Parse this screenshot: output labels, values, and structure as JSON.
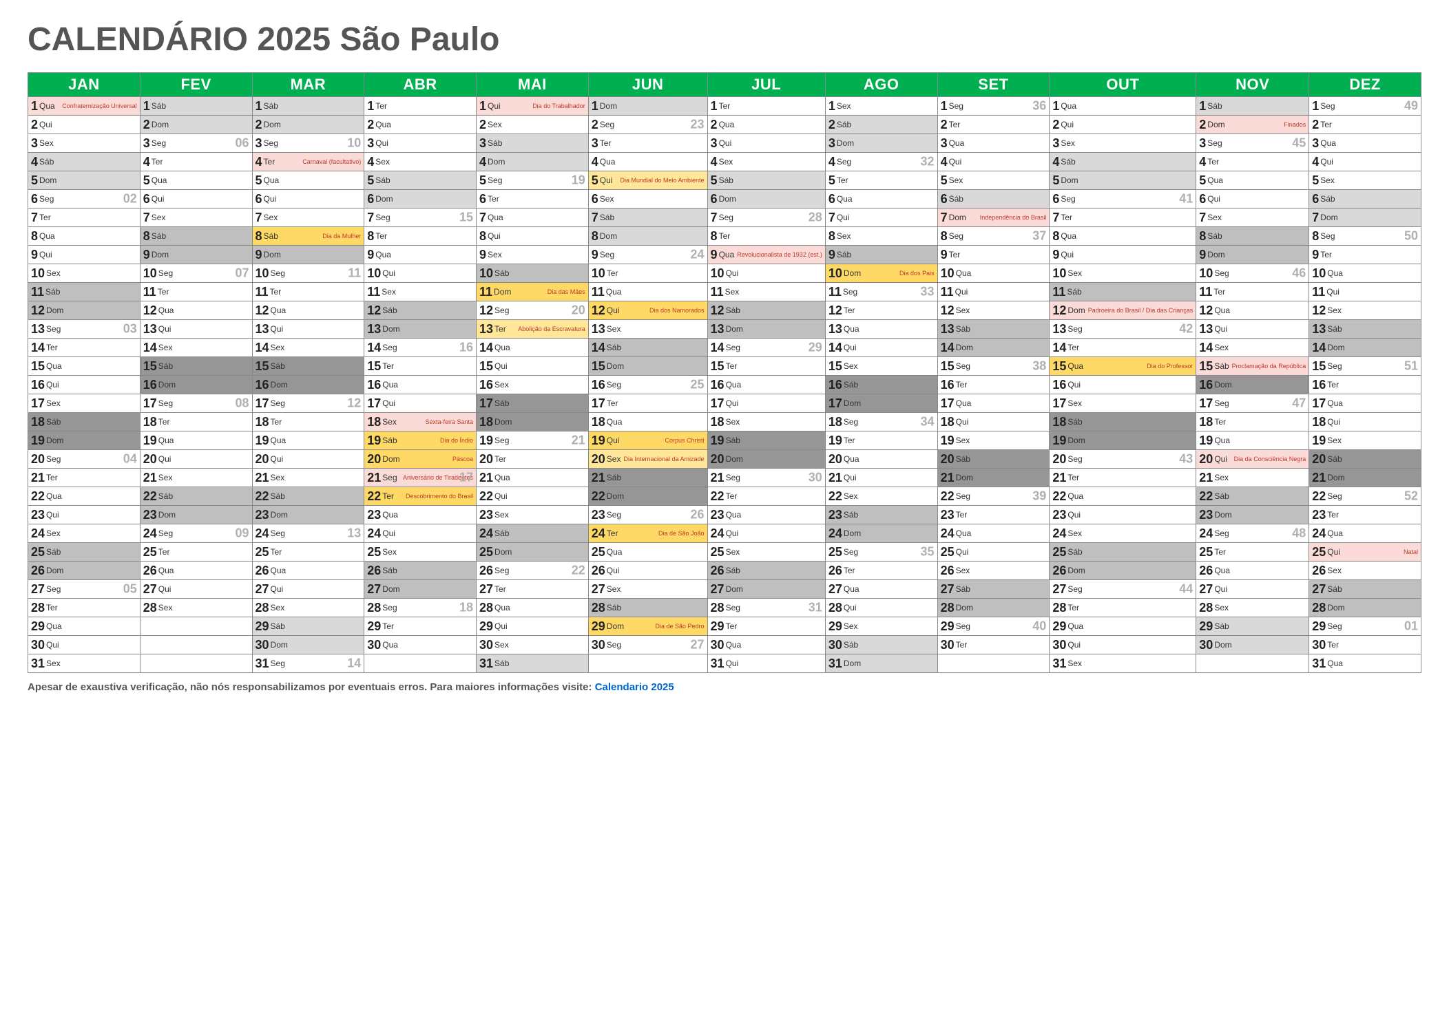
{
  "title": "CALENDÁRIO 2025 São Paulo",
  "footer_text": "Apesar de exaustiva verificação, não nós responsabilizamos por eventuais erros. Para maiores informações visite: ",
  "footer_link": "Calendario 2025",
  "colors": {
    "header_bg": "#00b050",
    "header_fg": "#ffffff",
    "weeknum": "#b0b0b0",
    "note": "#c0392b",
    "bg_white": "#ffffff",
    "bg_light": "#d9d9d9",
    "bg_med": "#bfbfbf",
    "bg_dark": "#969696",
    "bg_pink": "#fadbd8",
    "bg_yellow": "#ffd966",
    "bg_yellow2": "#ffe699"
  },
  "months": [
    "JAN",
    "FEV",
    "MAR",
    "ABR",
    "MAI",
    "JUN",
    "JUL",
    "AGO",
    "SET",
    "OUT",
    "NOV",
    "DEZ"
  ],
  "days_in_month": [
    31,
    28,
    31,
    30,
    31,
    30,
    31,
    31,
    30,
    31,
    30,
    31
  ],
  "start_dow": [
    3,
    6,
    6,
    2,
    4,
    0,
    2,
    5,
    1,
    3,
    6,
    1
  ],
  "dow_names": [
    "Dom",
    "Seg",
    "Ter",
    "Qua",
    "Qui",
    "Sex",
    "Sáb"
  ],
  "week_numbers": {
    "0": {
      "6": "02",
      "13": "03",
      "20": "04",
      "27": "05"
    },
    "1": {
      "3": "06",
      "10": "07",
      "17": "08",
      "24": "09"
    },
    "2": {
      "3": "10",
      "10": "11",
      "17": "12",
      "24": "13",
      "31": "14"
    },
    "3": {
      "7": "15",
      "14": "16",
      "21": "17",
      "28": "18"
    },
    "4": {
      "5": "19",
      "12": "20",
      "19": "21",
      "26": "22"
    },
    "5": {
      "2": "23",
      "9": "24",
      "16": "25",
      "23": "26",
      "30": "27"
    },
    "6": {
      "7": "28",
      "14": "29",
      "21": "30",
      "28": "31"
    },
    "7": {
      "4": "32",
      "11": "33",
      "18": "34",
      "25": "35"
    },
    "8": {
      "1": "36",
      "8": "37",
      "15": "38",
      "22": "39",
      "29": "40"
    },
    "9": {
      "6": "41",
      "13": "42",
      "20": "43",
      "27": "44"
    },
    "10": {
      "3": "45",
      "10": "46",
      "17": "47",
      "24": "48"
    },
    "11": {
      "1": "49",
      "8": "50",
      "15": "51",
      "22": "52",
      "29": "01"
    }
  },
  "notes": {
    "0": {
      "1": "Confraternização Universal"
    },
    "2": {
      "4": "Carnaval (facultativo)",
      "8": "Dia da Mulher"
    },
    "3": {
      "18": "Sexta-feira Santa",
      "19": "Dia do Índio",
      "20": "Páscoa",
      "21": "Aniversário de Tiradentes",
      "22": "Descobrimento do Brasil"
    },
    "4": {
      "1": "Dia do Trabalhador",
      "11": "Dia das Mães",
      "13": "Abolição da Escravatura"
    },
    "5": {
      "5": "Dia Mundial do Meio Ambiente",
      "12": "Dia dos Namorados",
      "19": "Corpus Christi",
      "20": "Dia Internacional da Amizade",
      "24": "Dia de São João",
      "29": "Dia de São Pedro"
    },
    "6": {
      "9": "Revolucionalista de 1932 (est.)"
    },
    "7": {
      "10": "Dia dos Pais"
    },
    "8": {
      "7": "Independência do Brasil"
    },
    "9": {
      "12": "Padroeira do Brasil / Dia das Crianças",
      "15": "Dia do Professor"
    },
    "10": {
      "2": "Finados",
      "15": "Proclamação da República",
      "20": "Dia da Consciência Negra"
    },
    "11": {
      "25": "Natal"
    }
  },
  "special_bg": {
    "0": {
      "1": "pink"
    },
    "2": {
      "4": "pink",
      "8": "yellow"
    },
    "3": {
      "18": "pink",
      "19": "yellow",
      "20": "yellow",
      "21": "pink",
      "22": "yellow"
    },
    "4": {
      "1": "pink",
      "11": "yellow",
      "13": "yellow2"
    },
    "5": {
      "5": "yellow2",
      "12": "yellow",
      "19": "yellow",
      "20": "yellow2",
      "24": "yellow",
      "29": "yellow"
    },
    "6": {
      "9": "pink"
    },
    "7": {
      "10": "yellow"
    },
    "8": {
      "7": "pink"
    },
    "9": {
      "12": "pink",
      "15": "yellow"
    },
    "10": {
      "2": "pink",
      "15": "pink",
      "20": "pink"
    },
    "11": {
      "25": "pink"
    }
  }
}
